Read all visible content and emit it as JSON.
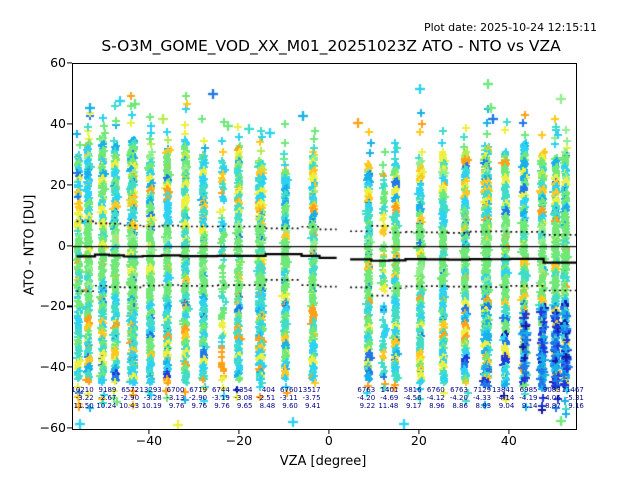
{
  "header": {
    "plot_date": "Plot date: 2025-10-24 12:15:11",
    "title": "S-O3M_GOME_VOD_XX_M01_20251023Z ATO - NTO vs VZA"
  },
  "chart_data": {
    "type": "scatter",
    "title": "S-O3M_GOME_VOD_XX_M01_20251023Z ATO - NTO vs VZA",
    "xlabel": "VZA [degree]",
    "ylabel": "ATO - NTO [DU]",
    "xlim": [
      -57.1,
      54.7
    ],
    "ylim": [
      -60,
      60
    ],
    "xticks": [
      -40,
      -20,
      0,
      20,
      40
    ],
    "yticks": [
      -60,
      -40,
      -20,
      0,
      20,
      40,
      60
    ],
    "grid": false,
    "legend": "none",
    "marker": "+",
    "zero_line": 0,
    "stats_text_color": "#00008b",
    "stats_columns": {
      "left": {
        "counts": [
          "10210",
          "9189",
          "6572",
          "13293",
          "6700",
          "6719",
          "6744",
          "6354",
          "404",
          "6760",
          "13517"
        ],
        "means": [
          "-3.22",
          "-2.67",
          "-2.90",
          "-3.28",
          "-3.13",
          "-2.90",
          "-3.19",
          "-3.08",
          "-2.51",
          "-3.11",
          "-3.75"
        ],
        "stds": [
          "11.50",
          "10.24",
          "10.43",
          "10.19",
          "9.76",
          "9.76",
          "9.76",
          "9.65",
          "8.48",
          "9.60",
          "9.41"
        ],
        "boundaries": [
          -56.3,
          -52.2,
          -49.1,
          -45.8,
          -41.6,
          -37.4,
          -33.2,
          -25.0,
          -14.3,
          -6.3,
          -2.3,
          1.5
        ]
      },
      "right": {
        "counts": [
          "6763",
          "1401",
          "5816",
          "6760",
          "6763",
          "7129",
          "13841",
          "6985",
          "9083",
          "11467"
        ],
        "means": [
          "-4.20",
          "-4.69",
          "-4.56",
          "-4.12",
          "-4.20",
          "-4.33",
          "-4.14",
          "-4.19",
          "-4.06",
          "-5.31"
        ],
        "stds": [
          "9.22",
          "11.48",
          "9.17",
          "8.96",
          "8.86",
          "8.83",
          "9.04",
          "9.14",
          "8.87",
          "9.16"
        ],
        "boundaries": [
          4.5,
          9.2,
          13.2,
          16.8,
          21.3,
          26.2,
          31.1,
          35.6,
          40.1,
          47.5,
          55.8
        ]
      }
    },
    "stripe_fields": [
      "vza",
      "core_top",
      "core_bottom",
      "tail_top",
      "tail_bottom",
      "density"
    ],
    "stripes": [
      [
        -55.8,
        30,
        -44,
        36,
        -52,
        0.75
      ],
      [
        -53.6,
        34,
        -45,
        46,
        -52,
        1
      ],
      [
        -50.4,
        36,
        -45,
        47,
        -51,
        1
      ],
      [
        -47.6,
        33,
        -45,
        44,
        -50,
        1
      ],
      [
        -43.8,
        35,
        -45,
        47,
        -50,
        1.55
      ],
      [
        -39.8,
        30,
        -45,
        42,
        -50,
        1
      ],
      [
        -36,
        32,
        -45,
        40,
        -50,
        1
      ],
      [
        -32,
        35,
        -45,
        47,
        -49,
        1
      ],
      [
        -28,
        30,
        -44,
        40,
        -49,
        1
      ],
      [
        -23.8,
        28,
        -44,
        38,
        -48,
        0.5
      ],
      [
        -20.2,
        33,
        -44,
        39,
        -48,
        1
      ],
      [
        -15.3,
        28,
        -44,
        36,
        -48,
        1.5
      ],
      [
        -9.8,
        25,
        -44,
        40,
        -47,
        1
      ],
      [
        -3.6,
        30,
        -44,
        36,
        -47,
        1
      ],
      [
        8.7,
        27,
        -44,
        39,
        -47,
        1
      ],
      [
        12,
        24,
        -44,
        31,
        -46,
        0.5
      ],
      [
        14.7,
        27,
        -44,
        33,
        -47,
        1
      ],
      [
        20.2,
        28,
        -45,
        43,
        -48,
        1
      ],
      [
        25.3,
        31,
        -45,
        37,
        -48,
        1
      ],
      [
        30.2,
        31,
        -45,
        38,
        -49,
        1
      ],
      [
        34.9,
        33,
        -46,
        44,
        -50,
        1.55
      ],
      [
        39.1,
        31,
        -46,
        40,
        -50,
        1
      ],
      [
        43.3,
        34,
        -46,
        42,
        -51,
        1
      ],
      [
        47.3,
        31,
        -47,
        38,
        -53,
        1.2
      ],
      [
        50.3,
        29,
        -47,
        41,
        -54,
        1.2
      ],
      [
        52.4,
        31,
        -46,
        38,
        -54,
        1.2
      ]
    ],
    "outlier_fields": [
      "vza",
      "du",
      "color"
    ],
    "outliers": [
      [
        -53.3,
        45.5,
        "deepsky"
      ],
      [
        -46.7,
        47.8,
        "cyan"
      ],
      [
        -43.3,
        46.8,
        "green"
      ],
      [
        -37.1,
        41.9,
        "greenyellow"
      ],
      [
        -26.0,
        50.1,
        "dodger"
      ],
      [
        -22.7,
        39.6,
        "green"
      ],
      [
        -18.0,
        38.6,
        "turquoise"
      ],
      [
        -13.3,
        37.3,
        "cyan"
      ],
      [
        -6.0,
        42.9,
        "deepsky"
      ],
      [
        6.2,
        40.6,
        "orange"
      ],
      [
        20.0,
        51.8,
        "cyan"
      ],
      [
        35.1,
        53.4,
        "green"
      ],
      [
        35.8,
        45.5,
        "green"
      ],
      [
        36.2,
        41.9,
        "dodger"
      ],
      [
        51.3,
        48.5,
        "palegreen"
      ],
      [
        -55.6,
        -58.4,
        "cyan"
      ],
      [
        -33.8,
        -58.7,
        "yellow"
      ],
      [
        -8.2,
        -57.7,
        "cyan"
      ],
      [
        16.4,
        -58.4,
        "cyan"
      ],
      [
        51.3,
        -57.4,
        "green"
      ]
    ],
    "palette": {
      "green": "#6fe878",
      "palegreen": "#90ee90",
      "greenyellow": "#b4ec4e",
      "turquoise": "#40dcc8",
      "cyan": "#2cd2f0",
      "deepsky": "#18b0e8",
      "dodger": "#1e78e8",
      "blue": "#2038d8",
      "navy": "#1818a8",
      "yellow": "#ecf040",
      "gold": "#ffc81e",
      "orange": "#ffa018"
    },
    "zones": [
      {
        "min": 22,
        "max": 99,
        "w": {
          "green": 0.26,
          "palegreen": 0.08,
          "turquoise": 0.14,
          "cyan": 0.16,
          "deepsky": 0.12,
          "yellow": 0.09,
          "gold": 0.05,
          "orange": 0.04,
          "dodger": 0.04,
          "greenyellow": 0.02
        }
      },
      {
        "min": 8,
        "max": 22,
        "w": {
          "turquoise": 0.26,
          "cyan": 0.22,
          "green": 0.15,
          "yellow": 0.11,
          "gold": 0.07,
          "orange": 0.06,
          "deepsky": 0.07,
          "dodger": 0.03,
          "greenyellow": 0.03
        }
      },
      {
        "min": -16,
        "max": 8,
        "w": {
          "green": 0.68,
          "palegreen": 0.09,
          "turquoise": 0.1,
          "cyan": 0.06,
          "yellow": 0.04,
          "gold": 0.03
        }
      },
      {
        "min": -34,
        "max": -16,
        "w": {
          "turquoise": 0.28,
          "green": 0.25,
          "cyan": 0.22,
          "gold": 0.07,
          "yellow": 0.06,
          "orange": 0.05,
          "deepsky": 0.04,
          "dodger": 0.03
        }
      },
      {
        "min": -99,
        "max": -34,
        "w": {
          "cyan": 0.23,
          "turquoise": 0.18,
          "yellow": 0.13,
          "gold": 0.12,
          "orange": 0.1,
          "green": 0.09,
          "deepsky": 0.07,
          "dodger": 0.05,
          "blue": 0.03
        }
      }
    ],
    "right_blue": {
      "vza_min": 32,
      "p": 0.18,
      "vza_min2": 45,
      "p2": 0.38,
      "du_max": -18,
      "table": {
        "deepsky": 0.28,
        "dodger": 0.34,
        "blue": 0.26,
        "navy": 0.12
      }
    }
  }
}
